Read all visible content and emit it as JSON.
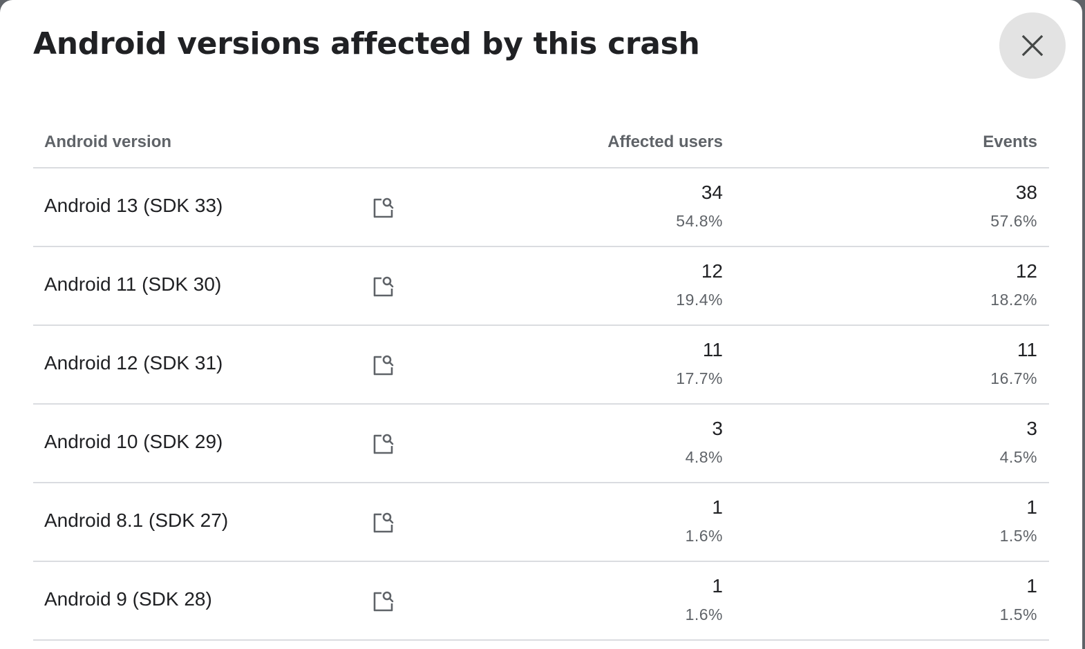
{
  "dialog": {
    "title": "Android versions affected by this crash",
    "close_icon": "close-icon"
  },
  "table": {
    "headers": {
      "version": "Android version",
      "users": "Affected users",
      "events": "Events"
    },
    "filter_icon": "filter-search-icon",
    "rows": [
      {
        "version": "Android 13 (SDK 33)",
        "users": "34",
        "users_pct": "54.8%",
        "events": "38",
        "events_pct": "57.6%"
      },
      {
        "version": "Android 11 (SDK 30)",
        "users": "12",
        "users_pct": "19.4%",
        "events": "12",
        "events_pct": "18.2%"
      },
      {
        "version": "Android 12 (SDK 31)",
        "users": "11",
        "users_pct": "17.7%",
        "events": "11",
        "events_pct": "16.7%"
      },
      {
        "version": "Android 10 (SDK 29)",
        "users": "3",
        "users_pct": "4.8%",
        "events": "3",
        "events_pct": "4.5%"
      },
      {
        "version": "Android 8.1 (SDK 27)",
        "users": "1",
        "users_pct": "1.6%",
        "events": "1",
        "events_pct": "1.5%"
      },
      {
        "version": "Android 9 (SDK 28)",
        "users": "1",
        "users_pct": "1.6%",
        "events": "1",
        "events_pct": "1.5%"
      }
    ]
  },
  "colors": {
    "title": "#202124",
    "secondary_text": "#5f6368",
    "divider": "#dadce0",
    "close_button_bg": "#e3e3e3"
  }
}
